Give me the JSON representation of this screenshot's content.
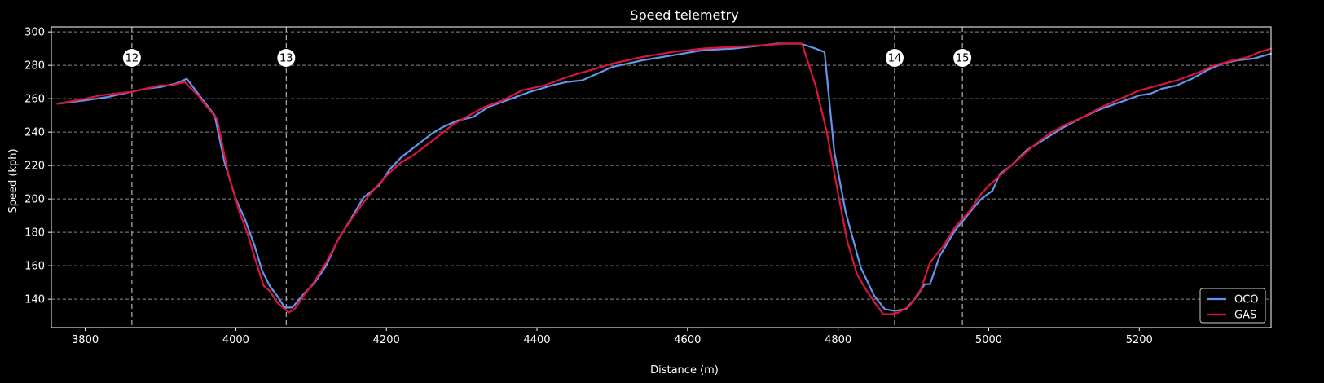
{
  "chart_data": {
    "type": "line",
    "title": "Speed telemetry",
    "xlabel": "Distance (m)",
    "ylabel": "Speed (kph)",
    "xlim": [
      3755,
      5375
    ],
    "ylim": [
      123,
      303
    ],
    "xticks": [
      3800,
      4000,
      4200,
      4400,
      4600,
      4800,
      5000,
      5200
    ],
    "yticks": [
      140,
      160,
      180,
      200,
      220,
      240,
      260,
      280,
      300
    ],
    "grid": true,
    "legend_position": "lower-right",
    "corners": [
      {
        "number": "12",
        "distance": 3862
      },
      {
        "number": "13",
        "distance": 4067
      },
      {
        "number": "14",
        "distance": 4875
      },
      {
        "number": "15",
        "distance": 4965
      }
    ],
    "series": [
      {
        "name": "OCO",
        "color": "#6495ed",
        "points": [
          [
            3763,
            257
          ],
          [
            3800,
            259
          ],
          [
            3830,
            261
          ],
          [
            3860,
            264
          ],
          [
            3880,
            266
          ],
          [
            3900,
            267
          ],
          [
            3920,
            269
          ],
          [
            3935,
            272
          ],
          [
            3955,
            260
          ],
          [
            3972,
            250
          ],
          [
            3985,
            222
          ],
          [
            4000,
            200
          ],
          [
            4012,
            188
          ],
          [
            4025,
            172
          ],
          [
            4035,
            157
          ],
          [
            4045,
            148
          ],
          [
            4055,
            142
          ],
          [
            4065,
            135
          ],
          [
            4075,
            135
          ],
          [
            4090,
            143
          ],
          [
            4105,
            150
          ],
          [
            4120,
            160
          ],
          [
            4135,
            175
          ],
          [
            4150,
            186
          ],
          [
            4170,
            201
          ],
          [
            4190,
            208
          ],
          [
            4205,
            218
          ],
          [
            4220,
            225
          ],
          [
            4240,
            232
          ],
          [
            4260,
            239
          ],
          [
            4275,
            243
          ],
          [
            4295,
            247
          ],
          [
            4315,
            249
          ],
          [
            4335,
            255
          ],
          [
            4360,
            259
          ],
          [
            4390,
            264
          ],
          [
            4420,
            268
          ],
          [
            4440,
            270
          ],
          [
            4460,
            271
          ],
          [
            4500,
            279
          ],
          [
            4540,
            283
          ],
          [
            4580,
            286
          ],
          [
            4620,
            289
          ],
          [
            4660,
            290
          ],
          [
            4700,
            292
          ],
          [
            4720,
            293
          ],
          [
            4750,
            293
          ],
          [
            4770,
            290
          ],
          [
            4782,
            288
          ],
          [
            4795,
            228
          ],
          [
            4810,
            192
          ],
          [
            4830,
            159
          ],
          [
            4848,
            142
          ],
          [
            4862,
            134
          ],
          [
            4875,
            133
          ],
          [
            4890,
            134
          ],
          [
            4905,
            142
          ],
          [
            4915,
            149
          ],
          [
            4922,
            149
          ],
          [
            4935,
            166
          ],
          [
            4955,
            181
          ],
          [
            4975,
            192
          ],
          [
            4990,
            200
          ],
          [
            5005,
            205
          ],
          [
            5015,
            215
          ],
          [
            5030,
            220
          ],
          [
            5050,
            229
          ],
          [
            5075,
            236
          ],
          [
            5100,
            243
          ],
          [
            5125,
            249
          ],
          [
            5150,
            254
          ],
          [
            5175,
            258
          ],
          [
            5200,
            262
          ],
          [
            5215,
            263
          ],
          [
            5230,
            266
          ],
          [
            5250,
            268
          ],
          [
            5270,
            272
          ],
          [
            5290,
            277
          ],
          [
            5310,
            281
          ],
          [
            5330,
            283
          ],
          [
            5352,
            284
          ],
          [
            5375,
            287
          ]
        ]
      },
      {
        "name": "GAS",
        "color": "#dc143c",
        "points": [
          [
            3763,
            257
          ],
          [
            3800,
            260
          ],
          [
            3820,
            262
          ],
          [
            3840,
            263
          ],
          [
            3860,
            264
          ],
          [
            3880,
            266
          ],
          [
            3900,
            268
          ],
          [
            3915,
            268
          ],
          [
            3932,
            270
          ],
          [
            3950,
            262
          ],
          [
            3960,
            256
          ],
          [
            3975,
            248
          ],
          [
            3990,
            215
          ],
          [
            4005,
            192
          ],
          [
            4015,
            180
          ],
          [
            4025,
            165
          ],
          [
            4037,
            148
          ],
          [
            4045,
            145
          ],
          [
            4055,
            138
          ],
          [
            4065,
            134
          ],
          [
            4070,
            132
          ],
          [
            4078,
            134
          ],
          [
            4090,
            142
          ],
          [
            4105,
            151
          ],
          [
            4120,
            162
          ],
          [
            4140,
            179
          ],
          [
            4160,
            192
          ],
          [
            4175,
            201
          ],
          [
            4190,
            209
          ],
          [
            4205,
            216
          ],
          [
            4220,
            222
          ],
          [
            4235,
            226
          ],
          [
            4250,
            231
          ],
          [
            4270,
            238
          ],
          [
            4290,
            245
          ],
          [
            4310,
            250
          ],
          [
            4330,
            255
          ],
          [
            4355,
            259
          ],
          [
            4380,
            265
          ],
          [
            4410,
            268
          ],
          [
            4440,
            273
          ],
          [
            4470,
            277
          ],
          [
            4500,
            281
          ],
          [
            4540,
            285
          ],
          [
            4580,
            288
          ],
          [
            4620,
            290
          ],
          [
            4660,
            291
          ],
          [
            4700,
            292
          ],
          [
            4730,
            293
          ],
          [
            4752,
            293
          ],
          [
            4770,
            268
          ],
          [
            4785,
            240
          ],
          [
            4798,
            208
          ],
          [
            4812,
            175
          ],
          [
            4825,
            155
          ],
          [
            4838,
            145
          ],
          [
            4850,
            137
          ],
          [
            4860,
            131
          ],
          [
            4870,
            131
          ],
          [
            4880,
            132
          ],
          [
            4895,
            136
          ],
          [
            4910,
            146
          ],
          [
            4922,
            162
          ],
          [
            4940,
            172
          ],
          [
            4955,
            183
          ],
          [
            4975,
            193
          ],
          [
            4990,
            203
          ],
          [
            5000,
            208
          ],
          [
            5020,
            216
          ],
          [
            5040,
            224
          ],
          [
            5060,
            232
          ],
          [
            5080,
            239
          ],
          [
            5100,
            244
          ],
          [
            5125,
            249
          ],
          [
            5150,
            255
          ],
          [
            5175,
            260
          ],
          [
            5200,
            265
          ],
          [
            5225,
            268
          ],
          [
            5250,
            271
          ],
          [
            5280,
            276
          ],
          [
            5300,
            280
          ],
          [
            5325,
            283
          ],
          [
            5345,
            285
          ],
          [
            5360,
            288
          ],
          [
            5375,
            290
          ]
        ]
      }
    ]
  }
}
